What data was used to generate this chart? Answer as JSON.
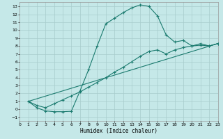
{
  "xlabel": "Humidex (Indice chaleur)",
  "bg_color": "#c5e8e8",
  "grid_color": "#a8cccc",
  "line_color": "#1a7a6e",
  "xlim": [
    0,
    23
  ],
  "ylim": [
    -1.5,
    13.5
  ],
  "xticks": [
    0,
    1,
    2,
    3,
    4,
    5,
    6,
    7,
    8,
    9,
    10,
    11,
    12,
    13,
    14,
    15,
    16,
    17,
    18,
    19,
    20,
    21,
    22,
    23
  ],
  "yticks": [
    -1,
    0,
    1,
    2,
    3,
    4,
    5,
    6,
    7,
    8,
    9,
    10,
    11,
    12,
    13
  ],
  "curve1_x": [
    1,
    2,
    3,
    4,
    5,
    6,
    7,
    8,
    9,
    10,
    11,
    12,
    13,
    14,
    15,
    16,
    17,
    18,
    19,
    20,
    21,
    22,
    23
  ],
  "curve1_y": [
    1.0,
    0.2,
    -0.2,
    -0.3,
    -0.3,
    -0.25,
    2.3,
    5.0,
    8.0,
    10.8,
    11.5,
    12.2,
    12.8,
    13.2,
    13.0,
    11.8,
    9.4,
    8.5,
    8.7,
    8.0,
    8.3,
    8.0,
    8.3
  ],
  "curve2_x": [
    1,
    2,
    3,
    4,
    5,
    6,
    7,
    8,
    9,
    10,
    11,
    12,
    13,
    14,
    15,
    16,
    17,
    18,
    19,
    20,
    21,
    22,
    23
  ],
  "curve2_y": [
    1.0,
    0.5,
    0.2,
    0.7,
    1.2,
    1.7,
    2.2,
    2.8,
    3.4,
    4.0,
    4.7,
    5.3,
    6.0,
    6.7,
    7.3,
    7.5,
    7.0,
    7.5,
    7.8,
    8.0,
    8.1,
    8.0,
    8.3
  ],
  "curve3_x": [
    1,
    23
  ],
  "curve3_y": [
    1.0,
    8.3
  ]
}
